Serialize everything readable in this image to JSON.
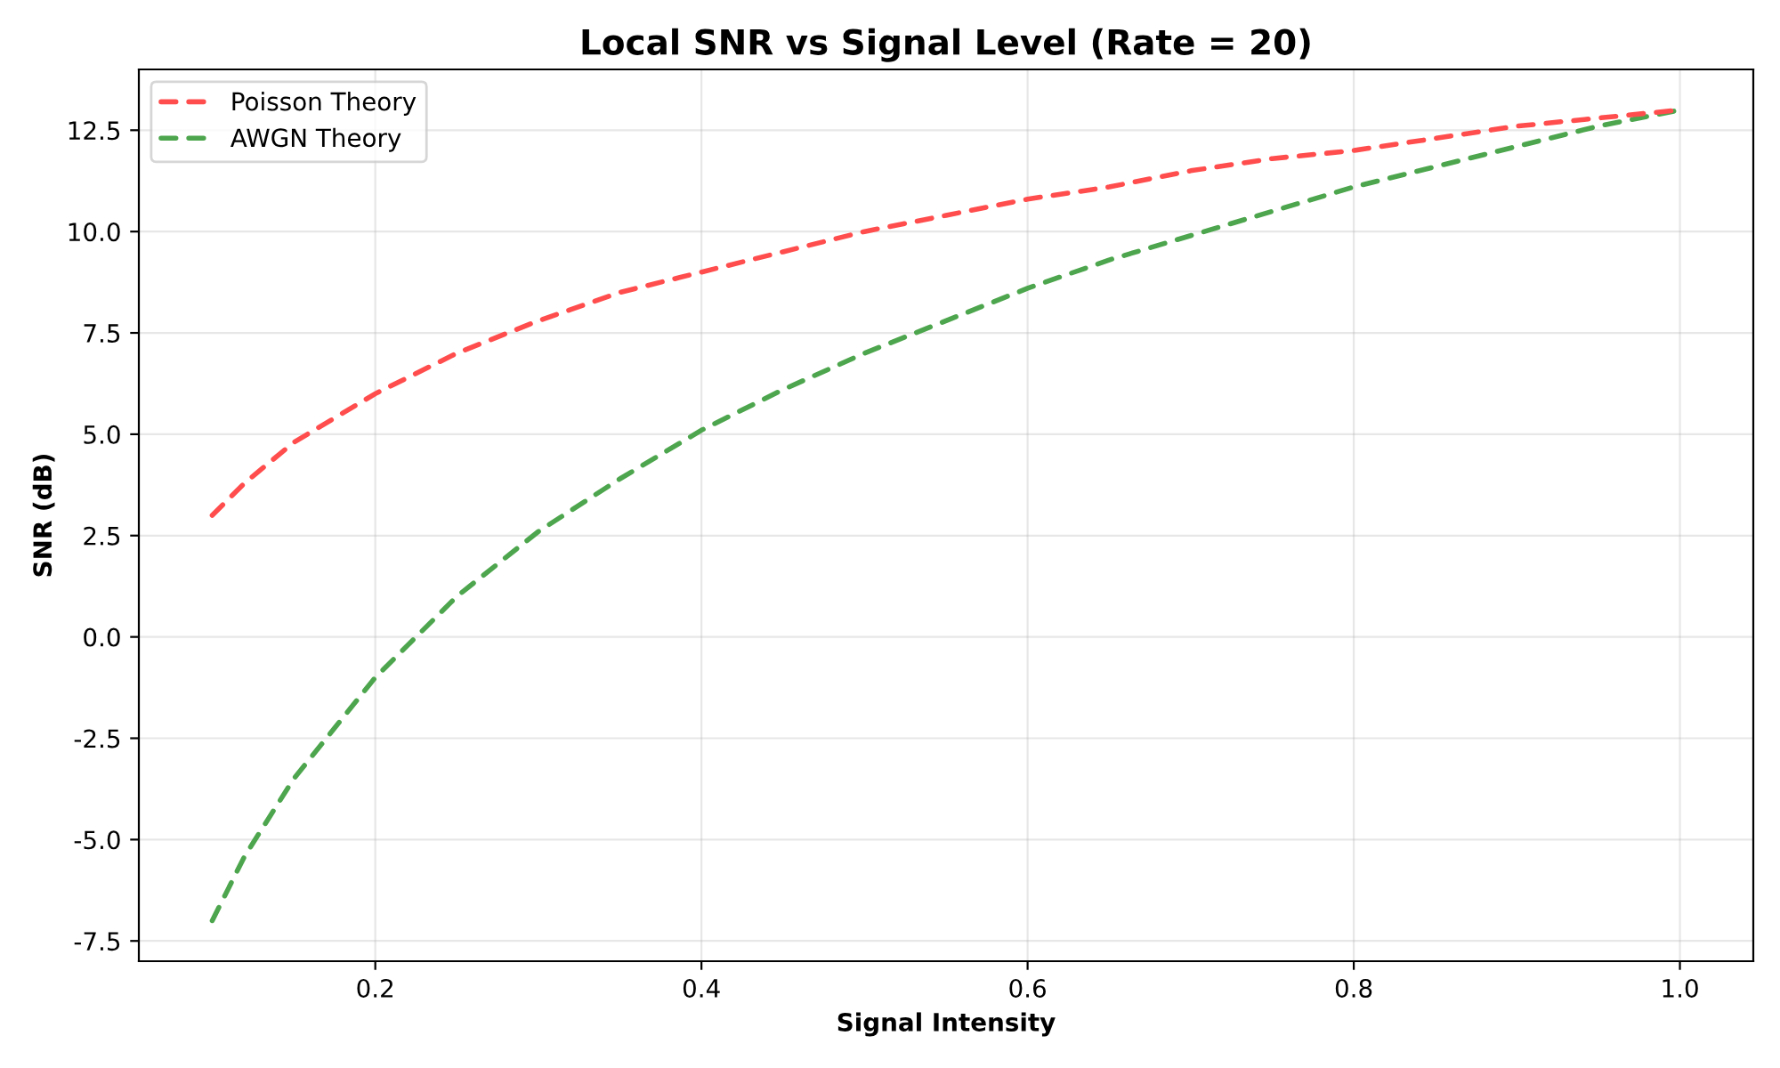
{
  "chart_data": {
    "type": "line",
    "title": "Local SNR vs Signal Level (Rate = 20)",
    "xlabel": "Signal Intensity",
    "ylabel": "SNR (dB)",
    "x": [
      0.1,
      0.12,
      0.15,
      0.2,
      0.25,
      0.3,
      0.35,
      0.4,
      0.45,
      0.5,
      0.55,
      0.6,
      0.65,
      0.7,
      0.75,
      0.8,
      0.85,
      0.9,
      0.95,
      1.0
    ],
    "series": [
      {
        "name": "Poisson Theory",
        "color": "#ff4d4d",
        "values": [
          3.0,
          3.8,
          4.8,
          6.0,
          7.0,
          7.8,
          8.5,
          9.0,
          9.5,
          10.0,
          10.4,
          10.8,
          11.1,
          11.5,
          11.8,
          12.0,
          12.3,
          12.6,
          12.8,
          13.0
        ]
      },
      {
        "name": "AWGN Theory",
        "color": "#4da64d",
        "values": [
          -7.0,
          -5.4,
          -3.5,
          -1.0,
          1.0,
          2.6,
          3.9,
          5.1,
          6.1,
          7.0,
          7.8,
          8.6,
          9.3,
          9.9,
          10.5,
          11.1,
          11.6,
          12.1,
          12.6,
          13.0
        ]
      }
    ],
    "xlim": [
      0.055,
      1.045
    ],
    "ylim": [
      -8.0,
      14.0
    ],
    "xticks": [
      0.2,
      0.4,
      0.6,
      0.8,
      {
        "value": 1.0,
        "label": "1.0"
      }
    ],
    "yticks": [
      -7.5,
      {
        "value": -5.0,
        "label": "-5.0"
      },
      -2.5,
      {
        "value": 0.0,
        "label": "0.0"
      },
      2.5,
      {
        "value": 5.0,
        "label": "5.0"
      },
      7.5,
      {
        "value": 10.0,
        "label": "10.0"
      },
      12.5
    ],
    "grid": true,
    "legend": "top left",
    "marker": "none",
    "line_style": "dashed"
  }
}
